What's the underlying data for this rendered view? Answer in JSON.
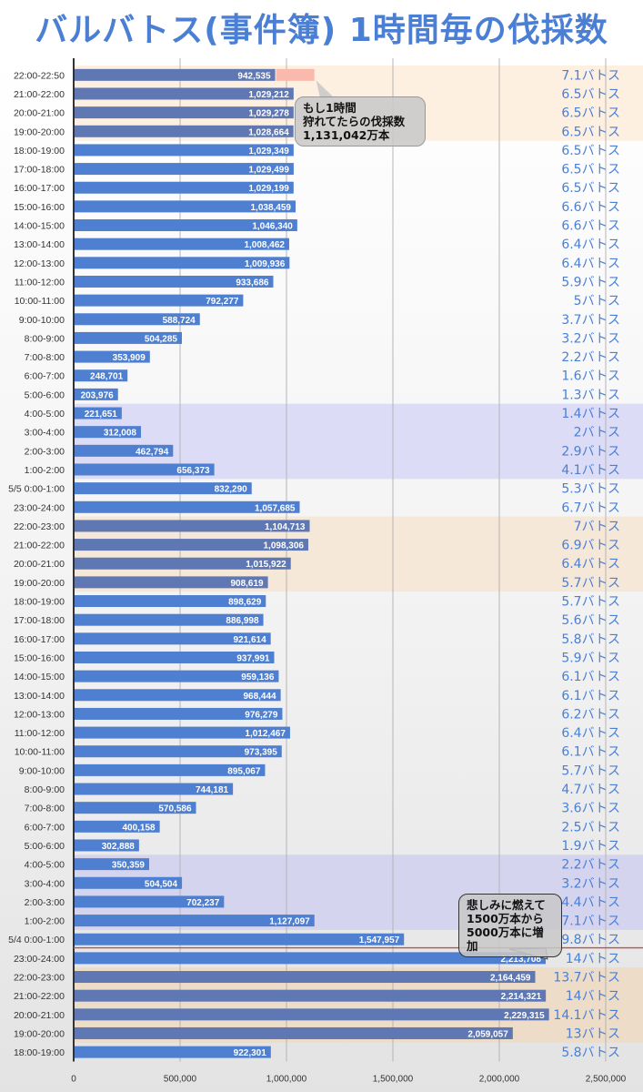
{
  "title": "バルバトス(事件簿) 1時間毎の伐採数",
  "chart_data": {
    "type": "bar",
    "orientation": "horizontal",
    "title": "バルバトス(事件簿) 1時間毎の伐採数",
    "xlabel": "",
    "ylabel": "",
    "xlim": [
      0,
      2500000
    ],
    "xticks": [
      0,
      500000,
      1000000,
      1500000,
      2000000,
      2500000
    ],
    "xtick_labels": [
      "0",
      "500,000",
      "1,000,000",
      "1,500,000",
      "2,000,000",
      "2,500,000"
    ],
    "grid": true,
    "unit_suffix": "バトス",
    "categories": [
      "22:00-22:50",
      "21:00-22:00",
      "20:00-21:00",
      "19:00-20:00",
      "18:00-19:00",
      "17:00-18:00",
      "16:00-17:00",
      "15:00-16:00",
      "14:00-15:00",
      "13:00-14:00",
      "12:00-13:00",
      "11:00-12:00",
      "10:00-11:00",
      "9:00-10:00",
      "8:00-9:00",
      "7:00-8:00",
      "6:00-7:00",
      "5:00-6:00",
      "4:00-5:00",
      "3:00-4:00",
      "2:00-3:00",
      "1:00-2:00",
      "5/5 0:00-1:00",
      "23:00-24:00",
      "22:00-23:00",
      "21:00-22:00",
      "20:00-21:00",
      "19:00-20:00",
      "18:00-19:00",
      "17:00-18:00",
      "16:00-17:00",
      "15:00-16:00",
      "14:00-15:00",
      "13:00-14:00",
      "12:00-13:00",
      "11:00-12:00",
      "10:00-11:00",
      "9:00-10:00",
      "8:00-9:00",
      "7:00-8:00",
      "6:00-7:00",
      "5:00-6:00",
      "4:00-5:00",
      "3:00-4:00",
      "2:00-3:00",
      "1:00-2:00",
      "5/4 0:00-1:00",
      "23:00-24:00",
      "22:00-23:00",
      "21:00-22:00",
      "20:00-21:00",
      "19:00-20:00",
      "18:00-19:00"
    ],
    "values": [
      942535,
      1029212,
      1029278,
      1028664,
      1029349,
      1029499,
      1029199,
      1038459,
      1046340,
      1008462,
      1009936,
      933686,
      792277,
      588724,
      504285,
      353909,
      248701,
      203976,
      221651,
      312008,
      462794,
      656373,
      832290,
      1057685,
      1104713,
      1098306,
      1015922,
      908619,
      898629,
      886998,
      921614,
      937991,
      959136,
      968444,
      976279,
      1012467,
      973395,
      895067,
      744181,
      570586,
      400158,
      302888,
      350359,
      504504,
      702237,
      1127097,
      1547957,
      2213708,
      2164459,
      2214321,
      2229315,
      2059057,
      922301
    ],
    "value_labels": [
      "942,535",
      "1,029,212",
      "1,029,278",
      "1,028,664",
      "1,029,349",
      "1,029,499",
      "1,029,199",
      "1,038,459",
      "1,046,340",
      "1,008,462",
      "1,009,936",
      "933,686",
      "792,277",
      "588,724",
      "504,285",
      "353,909",
      "248,701",
      "203,976",
      "221,651",
      "312,008",
      "462,794",
      "656,373",
      "832,290",
      "1,057,685",
      "1,104,713",
      "1,098,306",
      "1,015,922",
      "908,619",
      "898,629",
      "886,998",
      "921,614",
      "937,991",
      "959,136",
      "968,444",
      "976,279",
      "1,012,467",
      "973,395",
      "895,067",
      "744,181",
      "570,586",
      "400,158",
      "302,888",
      "350,359",
      "504,504",
      "702,237",
      "1,127,097",
      "1,547,957",
      "2,213,708",
      "2,164,459",
      "2,214,321",
      "2,229,315",
      "2,059,057",
      "922,301"
    ],
    "batos": [
      "7.1",
      "6.5",
      "6.5",
      "6.5",
      "6.5",
      "6.5",
      "6.5",
      "6.6",
      "6.6",
      "6.4",
      "6.4",
      "5.9",
      "5",
      "3.7",
      "3.2",
      "2.2",
      "1.6",
      "1.3",
      "1.4",
      "2",
      "2.9",
      "4.1",
      "5.3",
      "6.7",
      "7",
      "6.9",
      "6.4",
      "5.7",
      "5.7",
      "5.6",
      "5.8",
      "5.9",
      "6.1",
      "6.1",
      "6.2",
      "6.4",
      "6.1",
      "5.7",
      "4.7",
      "3.6",
      "2.5",
      "1.9",
      "2.2",
      "3.2",
      "4.4",
      "7.1",
      "9.8",
      "14",
      "13.7",
      "14",
      "14.1",
      "13",
      "5.8"
    ],
    "projected_extension": {
      "row": 0,
      "total_value": 1131042
    },
    "bands": [
      {
        "from": 0,
        "to": 3,
        "color": "#fdf0e0"
      },
      {
        "from": 18,
        "to": 21,
        "color": "#dcdcf6"
      },
      {
        "from": 24,
        "to": 27,
        "color": "#f6e8d8"
      },
      {
        "from": 42,
        "to": 45,
        "color": "#d4d4ee"
      },
      {
        "from": 48,
        "to": 51,
        "color": "#ecdcc8"
      }
    ],
    "darker_rows": [
      0,
      1,
      2,
      3,
      24,
      25,
      26,
      27,
      48,
      49,
      50,
      51
    ],
    "divider_after_row": 46,
    "colors": {
      "bar": "#4f7fd0",
      "bar_dark": "#5f78b4",
      "projection": "#f9b9ac",
      "divider": "#c0504d",
      "batos_text": "#4a7fd4",
      "title": "#4a7fd4"
    }
  },
  "callouts": {
    "projection": [
      "もし1時間",
      "狩れてたらの伐採数",
      "1,131,042万本"
    ],
    "increase": [
      "悲しみに燃えて",
      "1500万本から",
      "5000万本に増加"
    ]
  }
}
